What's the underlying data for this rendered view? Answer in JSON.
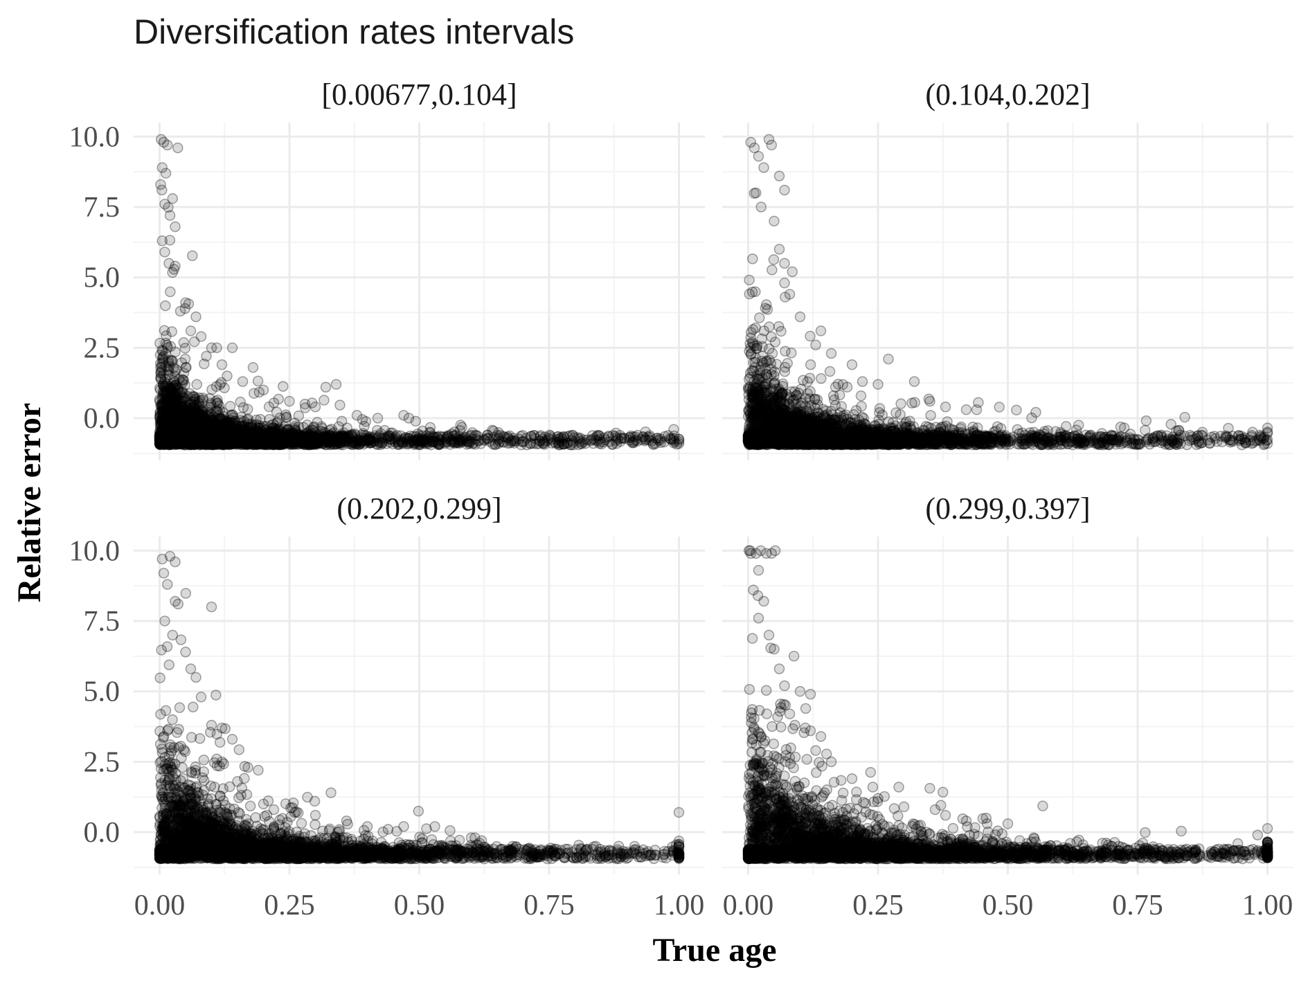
{
  "chart_data": {
    "type": "scatter",
    "title": "Diversification rates intervals",
    "xlabel": "True age",
    "ylabel": "Relative error",
    "xlim": [
      -0.05,
      1.05
    ],
    "ylim": [
      -1.5,
      10.5
    ],
    "x_ticks": [
      "0.00",
      "0.25",
      "0.50",
      "0.75",
      "1.00"
    ],
    "x_tick_values": [
      0,
      0.25,
      0.5,
      0.75,
      1.0
    ],
    "y_ticks": [
      "0.0",
      "2.5",
      "5.0",
      "7.5",
      "10.0"
    ],
    "y_tick_values": [
      0,
      2.5,
      5,
      7.5,
      10
    ],
    "grid": true,
    "point_color": "#000000",
    "point_opacity": 0.15,
    "facets": [
      {
        "label": "[0.00677,0.104]",
        "points": [
          [
            0.003,
            9.9
          ],
          [
            0.008,
            9.8
          ],
          [
            0.015,
            9.7
          ],
          [
            0.035,
            9.6
          ],
          [
            0.005,
            8.9
          ],
          [
            0.012,
            8.7
          ],
          [
            0.002,
            8.3
          ],
          [
            0.025,
            7.8
          ],
          [
            0.01,
            7.6
          ],
          [
            0.02,
            7.2
          ],
          [
            0.03,
            6.8
          ],
          [
            0.005,
            6.3
          ],
          [
            0.01,
            5.9
          ],
          [
            0.018,
            5.5
          ],
          [
            0.03,
            5.4
          ],
          [
            0.05,
            4.1
          ],
          [
            0.04,
            3.8
          ],
          [
            0.07,
            3.6
          ],
          [
            0.06,
            3.1
          ],
          [
            0.08,
            2.9
          ],
          [
            0.1,
            2.5
          ],
          [
            0.11,
            2.5
          ],
          [
            0.14,
            2.5
          ],
          [
            0.09,
            2.2
          ],
          [
            0.12,
            1.9
          ],
          [
            0.18,
            1.8
          ],
          [
            0.13,
            1.5
          ],
          [
            0.16,
            1.3
          ],
          [
            0.2,
            1.0
          ],
          [
            0.25,
            0.6
          ],
          [
            0.28,
            0.5
          ],
          [
            0.3,
            0.4
          ],
          [
            0.32,
            1.1
          ],
          [
            0.34,
            1.2
          ],
          [
            0.38,
            0.1
          ],
          [
            0.42,
            0.0
          ],
          [
            0.47,
            0.1
          ],
          [
            0.48,
            0.0
          ],
          [
            0.52,
            -0.5
          ],
          [
            0.6,
            -0.6
          ],
          [
            0.67,
            -0.7
          ],
          [
            0.72,
            -0.9
          ],
          [
            0.82,
            -0.9
          ],
          [
            0.88,
            -0.9
          ],
          [
            0.95,
            -0.9
          ],
          [
            0.99,
            -0.4
          ],
          [
            1.0,
            -0.9
          ]
        ]
      },
      {
        "label": "(0.104,0.202]",
        "points": [
          [
            0.005,
            9.8
          ],
          [
            0.012,
            9.6
          ],
          [
            0.04,
            9.9
          ],
          [
            0.045,
            9.7
          ],
          [
            0.02,
            9.3
          ],
          [
            0.03,
            8.9
          ],
          [
            0.06,
            8.6
          ],
          [
            0.07,
            8.1
          ],
          [
            0.015,
            8.0
          ],
          [
            0.025,
            7.5
          ],
          [
            0.05,
            7.0
          ],
          [
            0.06,
            6.0
          ],
          [
            0.07,
            5.5
          ],
          [
            0.085,
            5.2
          ],
          [
            0.07,
            4.8
          ],
          [
            0.08,
            4.4
          ],
          [
            0.1,
            3.6
          ],
          [
            0.14,
            3.1
          ],
          [
            0.13,
            2.6
          ],
          [
            0.16,
            2.3
          ],
          [
            0.2,
            1.9
          ],
          [
            0.22,
            1.3
          ],
          [
            0.25,
            1.2
          ],
          [
            0.27,
            2.1
          ],
          [
            0.32,
            1.3
          ],
          [
            0.35,
            0.6
          ],
          [
            0.38,
            0.4
          ],
          [
            0.42,
            0.3
          ],
          [
            0.44,
            0.3
          ],
          [
            0.48,
            -0.3
          ],
          [
            0.55,
            -0.5
          ],
          [
            0.65,
            -0.6
          ],
          [
            0.78,
            -0.7
          ],
          [
            0.85,
            -0.8
          ],
          [
            0.92,
            -0.7
          ],
          [
            0.98,
            -0.8
          ],
          [
            1.0,
            -0.9
          ]
        ]
      },
      {
        "label": "(0.202,0.299]",
        "points": [
          [
            0.005,
            9.7
          ],
          [
            0.02,
            9.8
          ],
          [
            0.03,
            9.6
          ],
          [
            0.008,
            9.2
          ],
          [
            0.015,
            8.8
          ],
          [
            0.03,
            8.2
          ],
          [
            0.1,
            8.0
          ],
          [
            0.01,
            7.5
          ],
          [
            0.025,
            7.0
          ],
          [
            0.05,
            6.4
          ],
          [
            0.06,
            5.8
          ],
          [
            0.07,
            5.5
          ],
          [
            0.08,
            4.8
          ],
          [
            0.1,
            3.8
          ],
          [
            0.12,
            3.7
          ],
          [
            0.14,
            3.3
          ],
          [
            0.11,
            2.6
          ],
          [
            0.12,
            2.5
          ],
          [
            0.17,
            2.3
          ],
          [
            0.19,
            2.2
          ],
          [
            0.15,
            1.8
          ],
          [
            0.2,
            1.0
          ],
          [
            0.22,
            0.8
          ],
          [
            0.26,
            0.7
          ],
          [
            0.3,
            0.6
          ],
          [
            0.33,
            1.4
          ],
          [
            0.36,
            0.4
          ],
          [
            0.4,
            0.2
          ],
          [
            0.44,
            0.1
          ],
          [
            0.47,
            0.2
          ],
          [
            0.53,
            0.2
          ],
          [
            0.6,
            -0.2
          ],
          [
            0.62,
            -0.3
          ],
          [
            0.68,
            -0.5
          ],
          [
            0.76,
            -0.6
          ],
          [
            0.84,
            -0.5
          ],
          [
            0.9,
            -0.7
          ],
          [
            0.97,
            -0.8
          ],
          [
            1.0,
            -0.9
          ]
        ]
      },
      {
        "label": "(0.299,0.397]",
        "points": [
          [
            0.005,
            9.9
          ],
          [
            0.015,
            9.9
          ],
          [
            0.035,
            9.9
          ],
          [
            0.045,
            9.9
          ],
          [
            0.02,
            9.3
          ],
          [
            0.01,
            8.6
          ],
          [
            0.03,
            8.2
          ],
          [
            0.02,
            7.6
          ],
          [
            0.04,
            7.0
          ],
          [
            0.05,
            6.5
          ],
          [
            0.06,
            5.8
          ],
          [
            0.07,
            5.2
          ],
          [
            0.1,
            5.0
          ],
          [
            0.12,
            4.9
          ],
          [
            0.08,
            4.2
          ],
          [
            0.09,
            3.8
          ],
          [
            0.11,
            3.7
          ],
          [
            0.12,
            3.6
          ],
          [
            0.14,
            3.4
          ],
          [
            0.13,
            2.9
          ],
          [
            0.16,
            2.5
          ],
          [
            0.2,
            1.9
          ],
          [
            0.24,
            1.6
          ],
          [
            0.29,
            1.6
          ],
          [
            0.25,
            1.2
          ],
          [
            0.3,
            0.9
          ],
          [
            0.36,
            0.8
          ],
          [
            0.38,
            0.6
          ],
          [
            0.42,
            0.4
          ],
          [
            0.46,
            0.3
          ],
          [
            0.5,
            0.3
          ],
          [
            0.55,
            -0.2
          ],
          [
            0.62,
            -0.4
          ],
          [
            0.7,
            -0.5
          ],
          [
            0.78,
            -0.6
          ],
          [
            0.86,
            -0.7
          ],
          [
            0.92,
            -0.8
          ],
          [
            0.98,
            -0.7
          ],
          [
            1.0,
            -0.9
          ]
        ]
      }
    ]
  }
}
